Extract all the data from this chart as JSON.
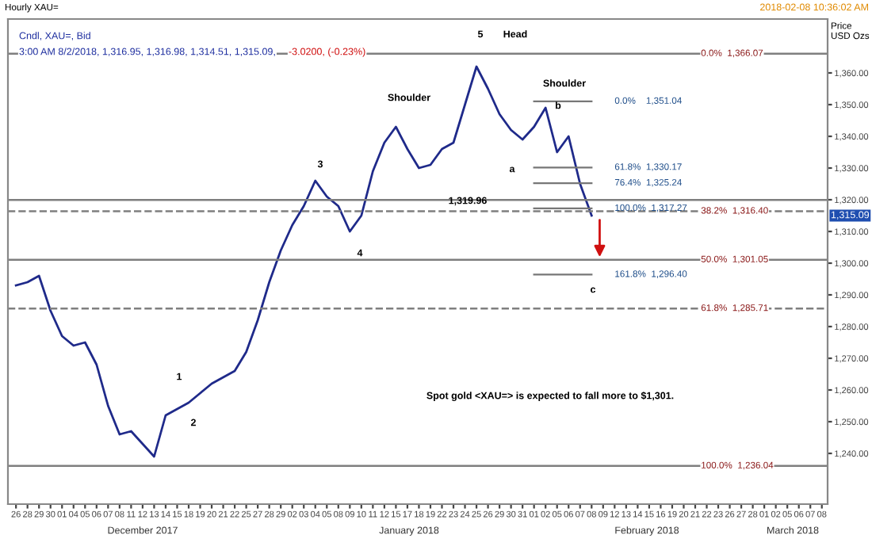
{
  "chart_data": {
    "type": "line",
    "title": "Hourly XAU=",
    "subtitle": "Cndl, XAU=, Bid",
    "ylabel": "Price USD Ozs",
    "categories": [
      "26",
      "28",
      "29",
      "30",
      "01",
      "04",
      "05",
      "06",
      "07",
      "08",
      "11",
      "12",
      "13",
      "14",
      "15",
      "18",
      "19",
      "20",
      "21",
      "22",
      "25",
      "27",
      "28",
      "29",
      "02",
      "03",
      "04",
      "05",
      "08",
      "09",
      "10",
      "11",
      "12",
      "15",
      "17",
      "18",
      "19",
      "22",
      "23",
      "24",
      "25",
      "26",
      "29",
      "30",
      "31",
      "01",
      "02",
      "05",
      "06",
      "07",
      "08",
      "09",
      "12",
      "13",
      "14",
      "15",
      "16",
      "19",
      "20",
      "21",
      "22",
      "23",
      "26",
      "27",
      "28",
      "01",
      "02",
      "05",
      "06",
      "07",
      "08"
    ],
    "series": [
      {
        "color": "#1f2a8a",
        "values": [
          1293,
          1294,
          1296,
          1285,
          1277,
          1274,
          1275,
          1268,
          1255,
          1246,
          1247,
          1243,
          1239,
          1252,
          1254,
          1256,
          1259,
          1262,
          1264,
          1266,
          1272,
          1282,
          1294,
          1304,
          1312,
          1318,
          1326,
          1321,
          1318,
          1310,
          1315,
          1329,
          1338,
          1343,
          1336,
          1330,
          1331,
          1336,
          1338,
          1350,
          1362,
          1355,
          1347,
          1342,
          1339,
          1343,
          1349,
          1335,
          1340,
          1325,
          1315,
          null,
          null,
          null,
          null,
          null,
          null,
          null,
          null,
          null,
          null,
          null,
          null,
          null,
          null,
          null,
          null,
          null,
          null,
          null,
          null
        ]
      },
      {
        "name": "0.0%    1,351.04",
        "color": "#777777",
        "values": [
          null,
          null,
          null,
          null,
          null,
          null,
          null,
          null,
          null,
          null,
          null,
          null,
          null,
          null,
          null,
          null,
          null,
          null,
          null,
          null,
          null,
          null,
          null,
          null,
          null,
          null,
          null,
          null,
          null,
          null,
          null,
          null,
          null,
          null,
          null,
          null,
          null,
          null,
          null,
          null,
          null,
          null,
          null,
          null,
          null,
          1351.04,
          1351.04,
          1351.04,
          1351.04,
          1351.04,
          1351.04,
          null,
          null,
          null,
          null,
          null,
          null,
          null,
          null,
          null,
          null,
          null,
          null,
          null,
          null,
          null,
          null,
          null,
          null,
          null,
          null
        ]
      },
      {
        "name": "61.8%  1,330.17",
        "color": "#777777",
        "values": [
          null,
          null,
          null,
          null,
          null,
          null,
          null,
          null,
          null,
          null,
          null,
          null,
          null,
          null,
          null,
          null,
          null,
          null,
          null,
          null,
          null,
          null,
          null,
          null,
          null,
          null,
          null,
          null,
          null,
          null,
          null,
          null,
          null,
          null,
          null,
          null,
          null,
          null,
          null,
          null,
          null,
          null,
          null,
          null,
          null,
          1330.17,
          1330.17,
          1330.17,
          1330.17,
          1330.17,
          1330.17,
          null,
          null,
          null,
          null,
          null,
          null,
          null,
          null,
          null,
          null,
          null,
          null,
          null,
          null,
          null,
          null,
          null,
          null,
          null,
          null
        ]
      },
      {
        "name": "76.4%  1,325.24",
        "color": "#777777",
        "values": [
          null,
          null,
          null,
          null,
          null,
          null,
          null,
          null,
          null,
          null,
          null,
          null,
          null,
          null,
          null,
          null,
          null,
          null,
          null,
          null,
          null,
          null,
          null,
          null,
          null,
          null,
          null,
          null,
          null,
          null,
          null,
          null,
          null,
          null,
          null,
          null,
          null,
          null,
          null,
          null,
          null,
          null,
          null,
          null,
          null,
          1325.24,
          1325.24,
          1325.24,
          1325.24,
          1325.24,
          1325.24,
          null,
          null,
          null,
          null,
          null,
          null,
          null,
          null,
          null,
          null,
          null,
          null,
          null,
          null,
          null,
          null,
          null,
          null,
          null,
          null
        ]
      },
      {
        "name": "100.0%  1,317.27",
        "color": "#777777",
        "values": [
          null,
          null,
          null,
          null,
          null,
          null,
          null,
          null,
          null,
          null,
          null,
          null,
          null,
          null,
          null,
          null,
          null,
          null,
          null,
          null,
          null,
          null,
          null,
          null,
          null,
          null,
          null,
          null,
          null,
          null,
          null,
          null,
          null,
          null,
          null,
          null,
          null,
          null,
          null,
          null,
          null,
          null,
          null,
          null,
          null,
          1317.27,
          1317.27,
          1317.27,
          1317.27,
          1317.27,
          1317.27,
          null,
          null,
          null,
          null,
          null,
          null,
          null,
          null,
          null,
          null,
          null,
          null,
          null,
          null,
          null,
          null,
          null,
          null,
          null,
          null
        ]
      },
      {
        "name": "161.8%  1,296.40",
        "color": "#777777",
        "values": [
          null,
          null,
          null,
          null,
          null,
          null,
          null,
          null,
          null,
          null,
          null,
          null,
          null,
          null,
          null,
          null,
          null,
          null,
          null,
          null,
          null,
          null,
          null,
          null,
          null,
          null,
          null,
          null,
          null,
          null,
          null,
          null,
          null,
          null,
          null,
          null,
          null,
          null,
          null,
          null,
          null,
          null,
          null,
          null,
          null,
          1296.4,
          1296.4,
          1296.4,
          1296.4,
          1296.4,
          1296.4,
          null,
          null,
          null,
          null,
          null,
          null,
          null,
          null,
          null,
          null,
          null,
          null,
          null,
          null,
          null,
          null,
          null,
          null,
          null,
          null
        ]
      }
    ],
    "ylim": [
      1224,
      1377
    ],
    "yticks": [
      {
        "value": 1240,
        "label": "1,240.00"
      },
      {
        "value": 1250,
        "label": "1,250.00"
      },
      {
        "value": 1260,
        "label": "1,260.00"
      },
      {
        "value": 1270,
        "label": "1,270.00"
      },
      {
        "value": 1280,
        "label": "1,280.00"
      },
      {
        "value": 1290,
        "label": "1,290.00"
      },
      {
        "value": 1300,
        "label": "1,300.00"
      },
      {
        "value": 1310,
        "label": "1,310.00"
      },
      {
        "value": 1320,
        "label": "1,320.00"
      },
      {
        "value": 1330,
        "label": "1,330.00"
      },
      {
        "value": 1340,
        "label": "1,340.00"
      },
      {
        "value": 1350,
        "label": "1,350.00"
      },
      {
        "value": 1360,
        "label": "1,360.00"
      }
    ],
    "ref_lines": [
      {
        "axis": "y",
        "value": 1366.07,
        "label": "0.0%  1,366.07",
        "color": "#7f7f7f",
        "line_style": "solid"
      },
      {
        "axis": "y",
        "value": 1319.96,
        "color": "#7f7f7f",
        "line_style": "solid"
      },
      {
        "axis": "y",
        "value": 1316.4,
        "label": "38.2%  1,316.40",
        "color": "#7f7f7f",
        "line_style": "dashed"
      },
      {
        "axis": "y",
        "value": 1301.05,
        "label": "50.0%  1,301.05",
        "color": "#7f7f7f",
        "line_style": "solid"
      },
      {
        "axis": "y",
        "value": 1285.71,
        "label": "61.8%  1,285.71",
        "color": "#7f7f7f",
        "line_style": "dashed"
      },
      {
        "axis": "y",
        "value": 1236.04,
        "label": "100.0%  1,236.04",
        "color": "#7f7f7f",
        "line_style": "solid"
      }
    ],
    "annotations": [
      "3:00 AM 8/2/2018, 1,316.95, 1,316.98, 1,314.51, 1,315.09,",
      "-3.0200, (-0.23%)",
      "2018-02-08 10:36:02 AM",
      "Spot gold <XAU=> is expected to fall more to $1,301.",
      "December 2017",
      "January 2018",
      "February 2018",
      "March 2018",
      "1",
      "2",
      "3",
      "4",
      "Shoulder",
      "5",
      "Head",
      "Shoulder",
      "a",
      "b",
      "c",
      "1,319.96",
      "1,315.09"
    ],
    "grid": false,
    "legend": false
  }
}
